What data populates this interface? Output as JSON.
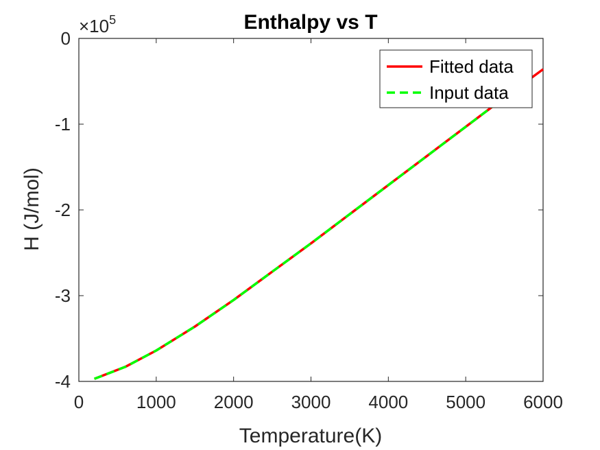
{
  "chart_data": {
    "type": "line",
    "title": "Enthalpy vs T",
    "xlabel": "Temperature(K)",
    "ylabel": "H (J/mol)",
    "y_exponent_base": "×10",
    "y_exponent_power": "5",
    "xlim": [
      0,
      6000
    ],
    "ylim": [
      -4,
      0
    ],
    "y_scale_factor": 100000,
    "xticks": [
      0,
      1000,
      2000,
      3000,
      4000,
      5000,
      6000
    ],
    "xtick_labels": [
      "0",
      "1000",
      "2000",
      "3000",
      "4000",
      "5000",
      "6000"
    ],
    "yticks": [
      0,
      -1,
      -2,
      -3,
      -4
    ],
    "ytick_labels": [
      "0",
      "-1",
      "-2",
      "-3",
      "-4"
    ],
    "grid": false,
    "legend_placement": "top-right",
    "series": [
      {
        "name": "Fitted data",
        "color": "#ff0000",
        "style": "solid",
        "x": [
          200,
          600,
          1000,
          1500,
          2000,
          2500,
          3000,
          3500,
          4000,
          4500,
          5000,
          5500,
          6000
        ],
        "y": [
          -3.97,
          -3.83,
          -3.64,
          -3.36,
          -3.05,
          -2.72,
          -2.39,
          -2.05,
          -1.71,
          -1.37,
          -1.03,
          -0.69,
          -0.36
        ]
      },
      {
        "name": "Input data",
        "color": "#00ff00",
        "style": "dashed",
        "x": [
          200,
          600,
          1000,
          1500,
          2000,
          2500,
          3000,
          3500,
          4000,
          4500,
          5000,
          5500
        ],
        "y": [
          -3.97,
          -3.83,
          -3.64,
          -3.36,
          -3.05,
          -2.72,
          -2.39,
          -2.05,
          -1.71,
          -1.37,
          -1.03,
          -0.69
        ]
      }
    ]
  }
}
